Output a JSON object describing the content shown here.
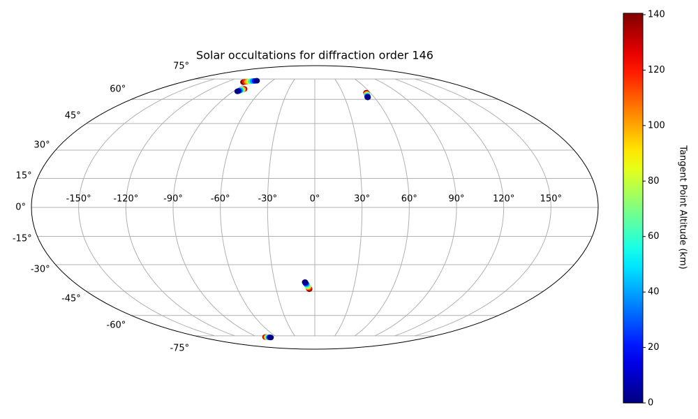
{
  "chart_data": {
    "type": "scatter",
    "projection": "mollweide",
    "title": "Solar occultations for diffraction order 146",
    "xlim": [
      -180,
      180
    ],
    "ylim": [
      -90,
      90
    ],
    "xticks": [
      {
        "value": -150,
        "label": "-150°"
      },
      {
        "value": -120,
        "label": "-120°"
      },
      {
        "value": -90,
        "label": "-90°"
      },
      {
        "value": -60,
        "label": "-60°"
      },
      {
        "value": -30,
        "label": "-30°"
      },
      {
        "value": 0,
        "label": "0°"
      },
      {
        "value": 30,
        "label": "30°"
      },
      {
        "value": 60,
        "label": "60°"
      },
      {
        "value": 90,
        "label": "90°"
      },
      {
        "value": 120,
        "label": "120°"
      },
      {
        "value": 150,
        "label": "150°"
      }
    ],
    "yticks": [
      {
        "value": -75,
        "label": "-75°"
      },
      {
        "value": -60,
        "label": "-60°"
      },
      {
        "value": -45,
        "label": "-45°"
      },
      {
        "value": -30,
        "label": "-30°"
      },
      {
        "value": -15,
        "label": "-15°"
      },
      {
        "value": 0,
        "label": "0°"
      },
      {
        "value": 15,
        "label": "15°"
      },
      {
        "value": 30,
        "label": "30°"
      },
      {
        "value": 45,
        "label": "45°"
      },
      {
        "value": 60,
        "label": "60°"
      },
      {
        "value": 75,
        "label": "75°"
      }
    ],
    "grid": true,
    "colormap": "jet",
    "clim": [
      0,
      140.5
    ],
    "cticks": [
      0,
      20,
      40,
      60,
      80,
      100,
      120,
      140
    ],
    "colorbar_label": "Tangent Point Altitude (km)",
    "x": [
      -97,
      -95,
      -93,
      -91,
      -89,
      -87,
      -84.5,
      -82,
      -81.5,
      -82,
      -82.5,
      -83,
      -83.5,
      -84,
      -84.8,
      -85.5,
      55.7,
      55.4,
      55.1,
      54.8,
      54.4,
      54.0,
      53.6,
      53.3,
      -4.3,
      -4.7,
      -5.1,
      -5.5,
      -6.0,
      -6.4,
      -6.9,
      -7.3,
      -77.5,
      -76.5,
      -75.5,
      -74.5,
      -73.5,
      -72.5,
      -71.5,
      -70.5
    ],
    "y": [
      72.4,
      72.6,
      72.8,
      73.0,
      73.1,
      73.3,
      73.4,
      73.5,
      67.2,
      67.0,
      66.8,
      66.6,
      66.4,
      66.1,
      65.8,
      65.5,
      64.5,
      64.0,
      63.6,
      63.1,
      62.7,
      62.2,
      61.8,
      61.3,
      -43.7,
      -43.1,
      -42.5,
      -42.0,
      -41.4,
      -40.8,
      -40.3,
      -39.7,
      -76.0,
      -76.05,
      -76.1,
      -76.15,
      -76.2,
      -76.25,
      -76.3,
      -76.4
    ],
    "color_values": [
      140,
      120,
      100,
      80,
      60,
      40,
      20,
      0,
      140,
      120,
      100,
      80,
      60,
      40,
      20,
      0,
      140,
      120,
      100,
      80,
      60,
      40,
      20,
      0,
      140,
      120,
      100,
      80,
      60,
      40,
      20,
      0,
      140,
      120,
      100,
      80,
      60,
      40,
      20,
      0
    ]
  }
}
